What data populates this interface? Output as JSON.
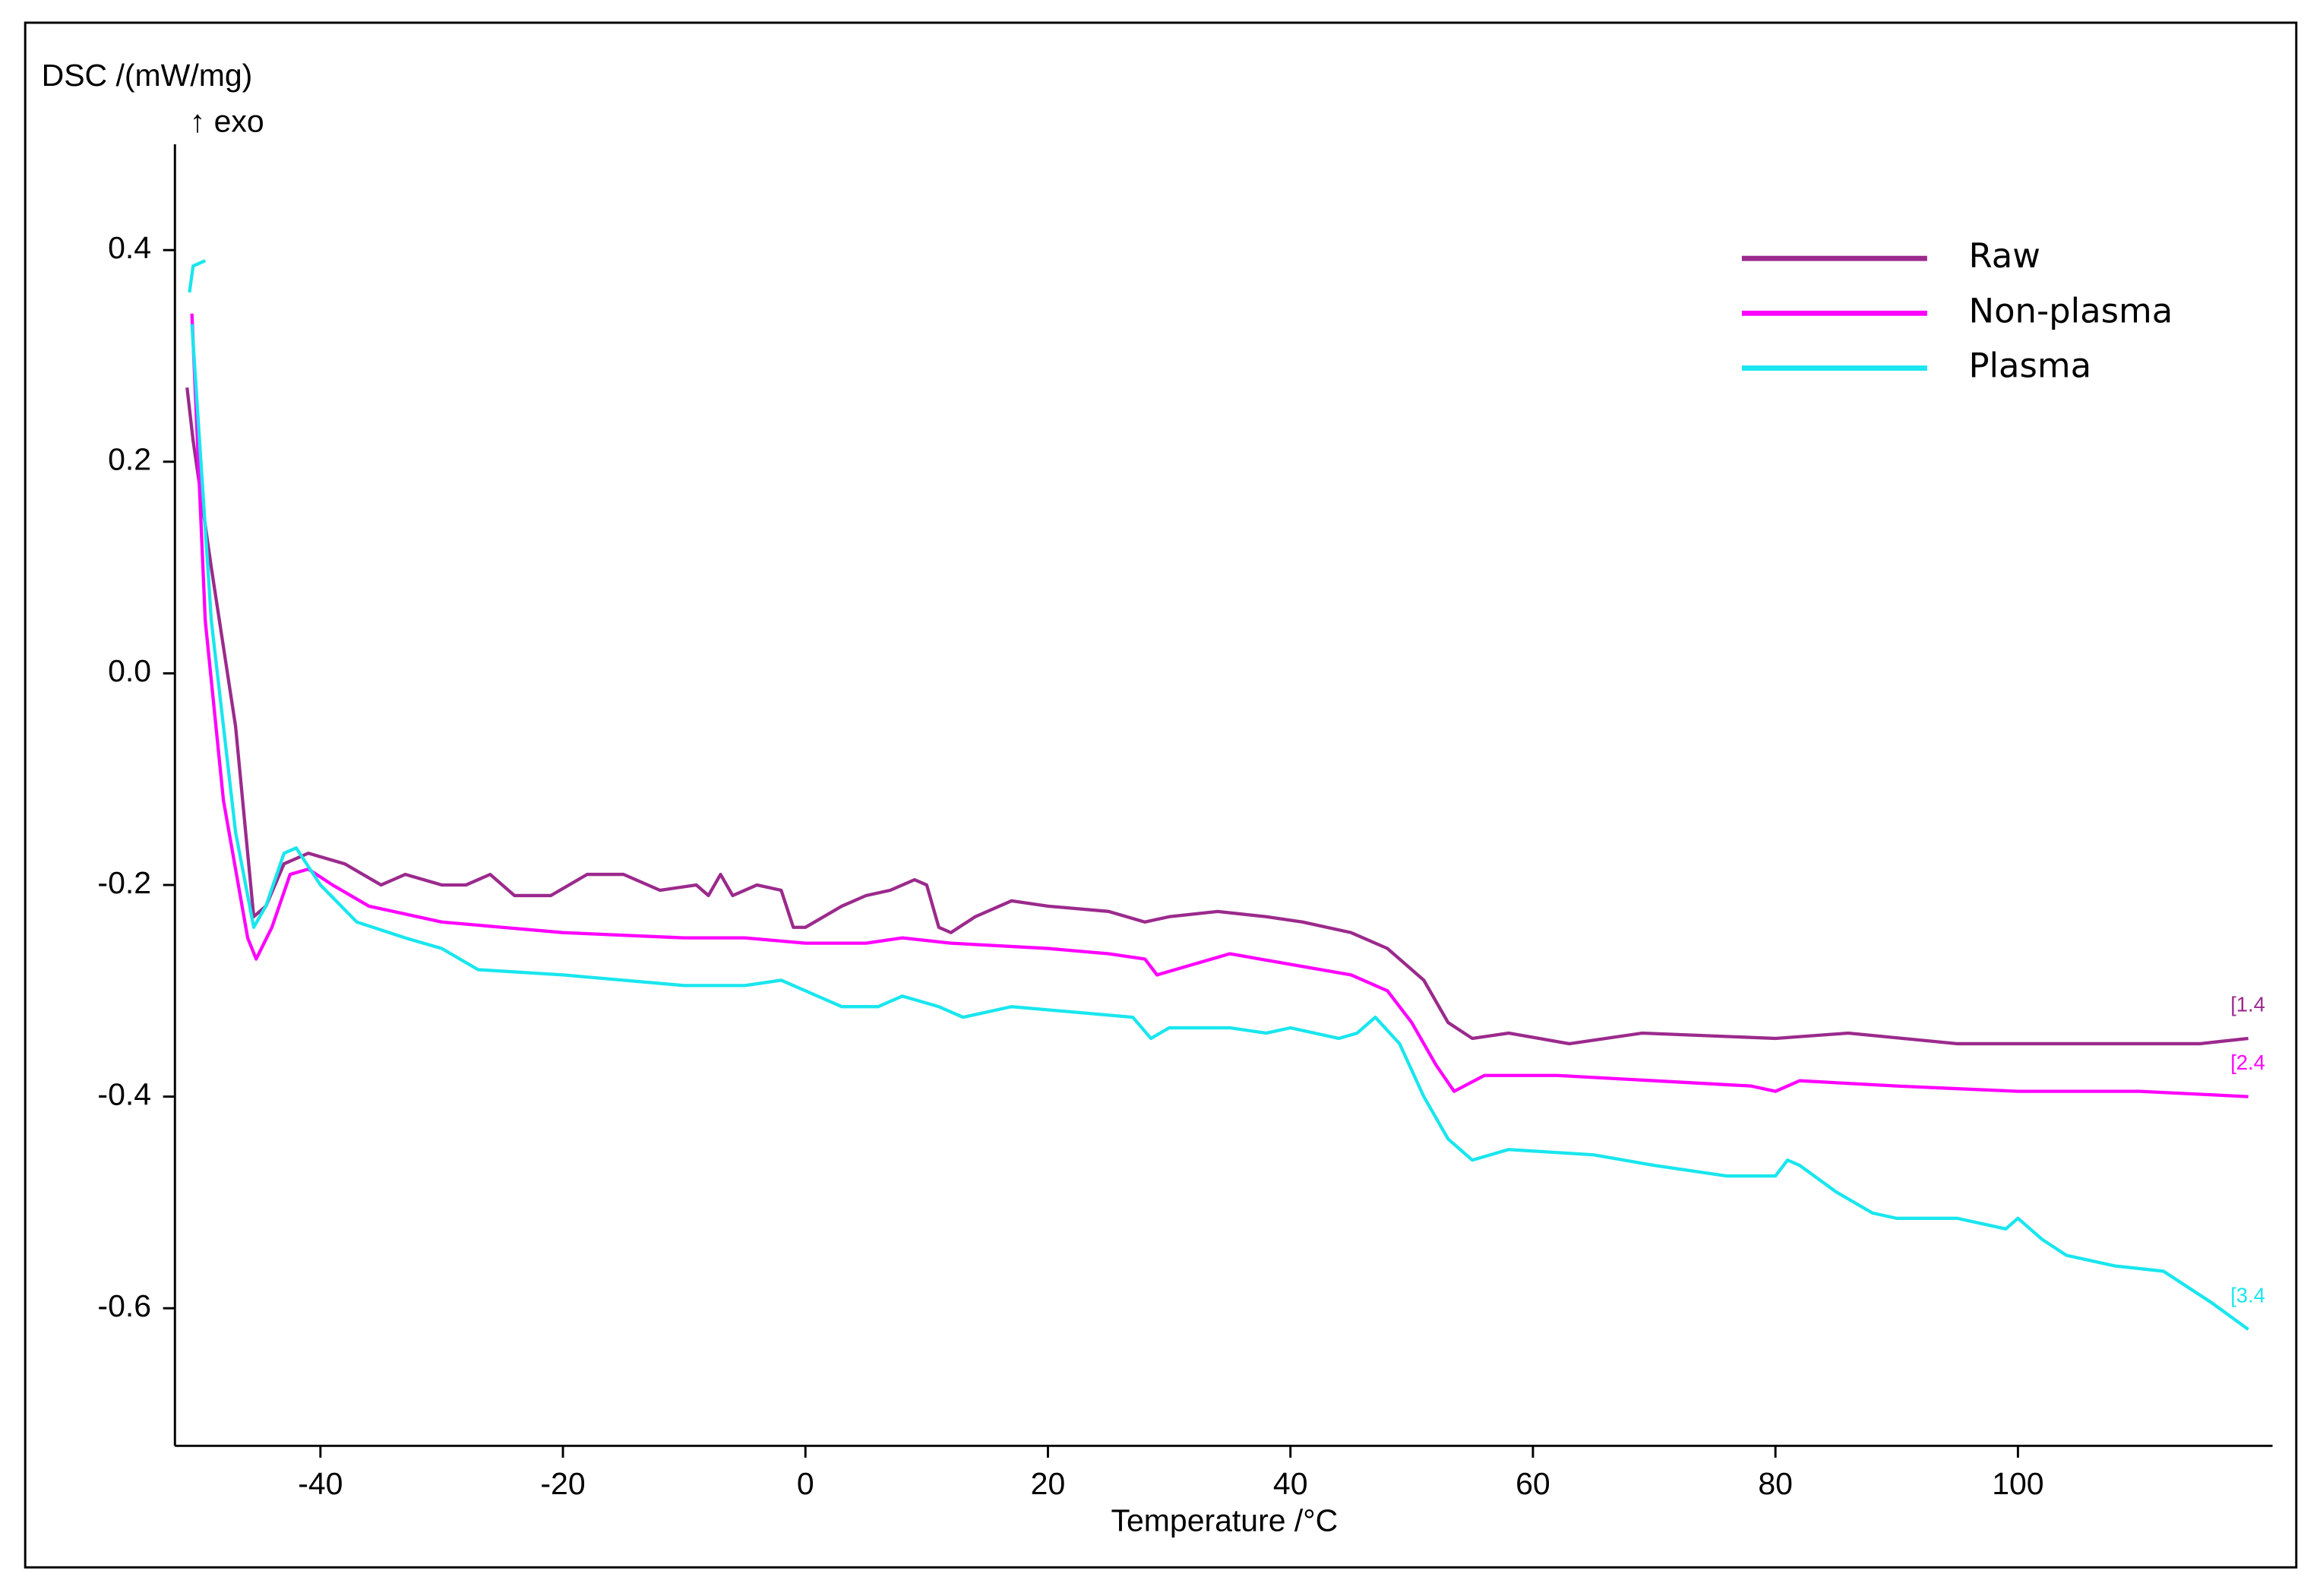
{
  "chart_data": {
    "type": "line",
    "y_label": "DSC /(mW/mg)",
    "y_label_sub": "↑ exo",
    "x_label": "Temperature /°C",
    "xlim": [
      -52,
      121
    ],
    "ylim": [
      -0.73,
      0.5
    ],
    "xticks": [
      -40,
      -20,
      0,
      20,
      40,
      60,
      80,
      100
    ],
    "yticks": [
      0.4,
      0.2,
      {
        "value": 0,
        "label": "0.0"
      },
      -0.2,
      -0.4,
      -0.6
    ],
    "legend": "upper right",
    "series": [
      {
        "name": "Raw",
        "color": "#9b2a8c",
        "end_label": "[1.4",
        "x": [
          -51,
          -50.5,
          -49,
          -47,
          -45.5,
          -44.5,
          -43,
          -41,
          -38,
          -35,
          -33,
          -30,
          -28,
          -26,
          -24,
          -21,
          -18,
          -15,
          -12,
          -9,
          -8,
          -7,
          -6,
          -4,
          -2,
          -1,
          0,
          3,
          5,
          7,
          9,
          10,
          11,
          12,
          14,
          17,
          20,
          25,
          28,
          30,
          34,
          38,
          41,
          45,
          48,
          51,
          53,
          55,
          58,
          63,
          69,
          80,
          86,
          95,
          105,
          115,
          119
        ],
        "values": [
          0.27,
          0.22,
          0.1,
          -0.05,
          -0.23,
          -0.22,
          -0.18,
          -0.17,
          -0.18,
          -0.2,
          -0.19,
          -0.2,
          -0.2,
          -0.19,
          -0.21,
          -0.21,
          -0.19,
          -0.19,
          -0.205,
          -0.2,
          -0.21,
          -0.19,
          -0.21,
          -0.2,
          -0.205,
          -0.24,
          -0.24,
          -0.22,
          -0.21,
          -0.205,
          -0.195,
          -0.2,
          -0.24,
          -0.245,
          -0.23,
          -0.215,
          -0.22,
          -0.225,
          -0.235,
          -0.23,
          -0.225,
          -0.23,
          -0.235,
          -0.245,
          -0.26,
          -0.29,
          -0.33,
          -0.345,
          -0.34,
          -0.35,
          -0.34,
          -0.345,
          -0.34,
          -0.35,
          -0.35,
          -0.35,
          -0.345
        ]
      },
      {
        "name": "Non-plasma",
        "color": "#ff00ff",
        "end_label": "[2.4",
        "x": [
          -50.6,
          -49.5,
          -48,
          -46,
          -45.3,
          -44,
          -42.5,
          -41,
          -39,
          -36,
          -30,
          -25,
          -20,
          -10,
          -5,
          0,
          5,
          8,
          12,
          20,
          25,
          28,
          29,
          32,
          35,
          40,
          45,
          48,
          50,
          52,
          53.5,
          56,
          62,
          70,
          78,
          80,
          82,
          90,
          100,
          110,
          119
        ],
        "values": [
          0.34,
          0.05,
          -0.12,
          -0.25,
          -0.27,
          -0.24,
          -0.19,
          -0.185,
          -0.2,
          -0.22,
          -0.235,
          -0.24,
          -0.245,
          -0.25,
          -0.25,
          -0.255,
          -0.255,
          -0.25,
          -0.255,
          -0.26,
          -0.265,
          -0.27,
          -0.285,
          -0.275,
          -0.265,
          -0.275,
          -0.285,
          -0.3,
          -0.33,
          -0.37,
          -0.395,
          -0.38,
          -0.38,
          -0.385,
          -0.39,
          -0.395,
          -0.385,
          -0.39,
          -0.395,
          -0.395,
          -0.4
        ]
      },
      {
        "name": "Plasma",
        "color": "#19e6ee",
        "end_label": "[3.4",
        "x": [
          -50.8,
          -50.5,
          -49.5,
          null,
          -50.6,
          -49,
          -47,
          -45.5,
          -44.5,
          -43,
          -42,
          -40,
          -37,
          -33,
          -30,
          -27,
          -20,
          -15,
          -10,
          -5,
          -2,
          0,
          3,
          6,
          8,
          11,
          13,
          17,
          22,
          27,
          28.5,
          30,
          35,
          38,
          40,
          44,
          45.5,
          47,
          49,
          51,
          53,
          55,
          58,
          65,
          70,
          76,
          80,
          81,
          82,
          85,
          88,
          90,
          95,
          99,
          100,
          102,
          104,
          108,
          112,
          116,
          119
        ],
        "values": [
          0.36,
          0.385,
          0.39,
          null,
          0.33,
          0.05,
          -0.15,
          -0.24,
          -0.22,
          -0.17,
          -0.165,
          -0.2,
          -0.235,
          -0.25,
          -0.26,
          -0.28,
          -0.285,
          -0.29,
          -0.295,
          -0.295,
          -0.29,
          -0.3,
          -0.315,
          -0.315,
          -0.305,
          -0.315,
          -0.325,
          -0.315,
          -0.32,
          -0.325,
          -0.345,
          -0.335,
          -0.335,
          -0.34,
          -0.335,
          -0.345,
          -0.34,
          -0.325,
          -0.35,
          -0.4,
          -0.44,
          -0.46,
          -0.45,
          -0.455,
          -0.465,
          -0.475,
          -0.475,
          -0.46,
          -0.465,
          -0.49,
          -0.51,
          -0.515,
          -0.515,
          -0.525,
          -0.515,
          -0.535,
          -0.55,
          -0.56,
          -0.565,
          -0.595,
          -0.62
        ]
      }
    ]
  }
}
